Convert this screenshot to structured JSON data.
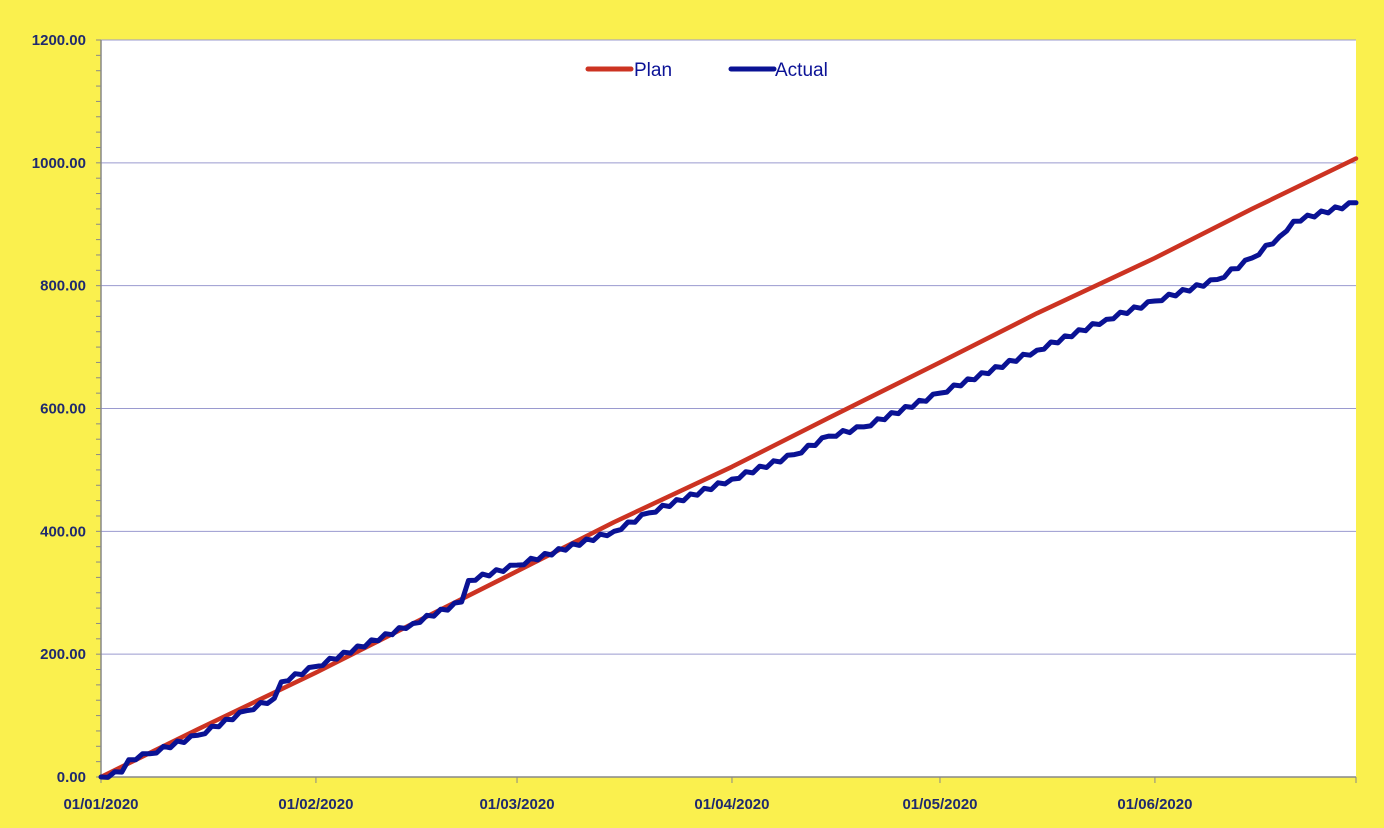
{
  "colors": {
    "background": "#FAF04E",
    "plot_area": "#FFFFFF",
    "grid": "#9A9ACF",
    "plan": "#CC3322",
    "actual": "#0A1294",
    "tick_text": "#1F2A6E"
  },
  "chart_data": {
    "type": "line",
    "title": "",
    "xlabel": "",
    "ylabel": "",
    "x_axis": {
      "type": "date",
      "range": [
        "2020-01-01",
        "2020-06-30"
      ],
      "ticks": [
        {
          "date": "2020-01-01",
          "label": "01/01/2020"
        },
        {
          "date": "2020-02-01",
          "label": "01/02/2020"
        },
        {
          "date": "2020-03-01",
          "label": "01/03/2020"
        },
        {
          "date": "2020-04-01",
          "label": "01/04/2020"
        },
        {
          "date": "2020-05-01",
          "label": "01/05/2020"
        },
        {
          "date": "2020-06-01",
          "label": "01/06/2020"
        }
      ]
    },
    "y_axis": {
      "range": [
        0,
        1200
      ],
      "ticks": [
        0,
        200,
        400,
        600,
        800,
        1000,
        1200
      ],
      "tick_labels": [
        "0.00",
        "200.00",
        "400.00",
        "600.00",
        "800.00",
        "1000.00",
        "1200.00"
      ],
      "gridlines": true
    },
    "legend": {
      "position": "top-center"
    },
    "series": [
      {
        "name": "Plan",
        "color": "#CC3322",
        "points": [
          [
            "2020-01-01",
            0
          ],
          [
            "2020-01-15",
            78
          ],
          [
            "2020-02-01",
            170
          ],
          [
            "2020-02-15",
            250
          ],
          [
            "2020-03-01",
            335
          ],
          [
            "2020-03-15",
            415
          ],
          [
            "2020-04-01",
            505
          ],
          [
            "2020-04-15",
            585
          ],
          [
            "2020-05-01",
            675
          ],
          [
            "2020-05-15",
            755
          ],
          [
            "2020-06-01",
            845
          ],
          [
            "2020-06-15",
            925
          ],
          [
            "2020-06-30",
            1007
          ]
        ]
      },
      {
        "name": "Actual",
        "color": "#0A1294",
        "points": [
          [
            "2020-01-01",
            0
          ],
          [
            "2020-01-04",
            8
          ],
          [
            "2020-01-05",
            28
          ],
          [
            "2020-01-08",
            38
          ],
          [
            "2020-01-15",
            68
          ],
          [
            "2020-01-22",
            108
          ],
          [
            "2020-01-26",
            128
          ],
          [
            "2020-01-27",
            155
          ],
          [
            "2020-02-01",
            180
          ],
          [
            "2020-02-15",
            250
          ],
          [
            "2020-02-22",
            285
          ],
          [
            "2020-02-23",
            320
          ],
          [
            "2020-03-01",
            345
          ],
          [
            "2020-03-15",
            400
          ],
          [
            "2020-03-20",
            430
          ],
          [
            "2020-04-01",
            485
          ],
          [
            "2020-04-10",
            525
          ],
          [
            "2020-04-15",
            555
          ],
          [
            "2020-04-20",
            570
          ],
          [
            "2020-05-01",
            625
          ],
          [
            "2020-05-15",
            695
          ],
          [
            "2020-05-25",
            745
          ],
          [
            "2020-06-01",
            775
          ],
          [
            "2020-06-10",
            810
          ],
          [
            "2020-06-15",
            845
          ],
          [
            "2020-06-19",
            880
          ],
          [
            "2020-06-21",
            905
          ],
          [
            "2020-06-30",
            935
          ]
        ]
      }
    ]
  }
}
